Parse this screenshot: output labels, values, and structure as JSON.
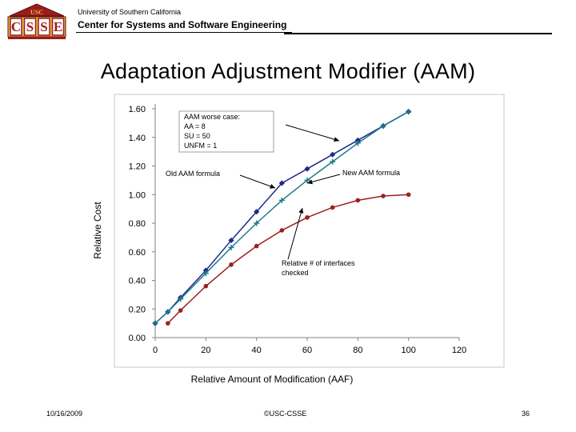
{
  "header": {
    "logo_text": "USC",
    "logo_letters": [
      "C",
      "S",
      "S",
      "E"
    ],
    "university": "University of Southern California",
    "center": "Center for Systems and Software Engineering"
  },
  "slide": {
    "title": "Adaptation Adjustment Modifier (AAM)"
  },
  "footer": {
    "date": "10/16/2009",
    "copyright": "©USC-CSSE",
    "page": "36"
  },
  "colors": {
    "brand_red": "#9b1c1c",
    "brand_gold": "#e8b64a",
    "series_old": "#1f2a8a",
    "series_new": "#1f7a8c",
    "series_interfaces": "#9b2020"
  },
  "chart_data": {
    "type": "line",
    "xlabel": "Relative Amount of Modification (AAF)",
    "ylabel": "Relative Cost",
    "xlim": [
      0,
      120
    ],
    "ylim": [
      0,
      1.6
    ],
    "xticks": [
      "0",
      "20",
      "40",
      "60",
      "80",
      "100",
      "120"
    ],
    "yticks": [
      "0.00",
      "0.20",
      "0.40",
      "0.60",
      "0.80",
      "1.00",
      "1.20",
      "1.40",
      "1.60"
    ],
    "grid": false,
    "series": [
      {
        "name": "Old AAM formula",
        "marker": "diamond",
        "x": [
          0,
          5,
          10,
          20,
          30,
          40,
          50,
          60,
          70,
          80,
          90,
          100
        ],
        "y": [
          0.1,
          0.18,
          0.28,
          0.47,
          0.68,
          0.88,
          1.08,
          1.18,
          1.28,
          1.38,
          1.48,
          1.58
        ]
      },
      {
        "name": "New AAM formula",
        "marker": "cross",
        "x": [
          0,
          5,
          10,
          20,
          30,
          40,
          50,
          60,
          70,
          80,
          90,
          100
        ],
        "y": [
          0.1,
          0.18,
          0.27,
          0.45,
          0.63,
          0.8,
          0.96,
          1.1,
          1.23,
          1.36,
          1.48,
          1.58
        ]
      },
      {
        "name": "Relative # of interfaces checked",
        "marker": "circle",
        "x": [
          5,
          10,
          20,
          30,
          40,
          50,
          60,
          70,
          80,
          90,
          100
        ],
        "y": [
          0.1,
          0.19,
          0.36,
          0.51,
          0.64,
          0.75,
          0.84,
          0.91,
          0.96,
          0.99,
          1.0
        ]
      }
    ],
    "annotations": {
      "worst_case": [
        "AAM worse case:",
        "AA = 8",
        "SU = 50",
        "UNFM = 1"
      ],
      "old_label": "Old AAM formula",
      "new_label": "New AAM formula",
      "interfaces_label": [
        "Relative # of interfaces",
        "checked"
      ]
    }
  }
}
